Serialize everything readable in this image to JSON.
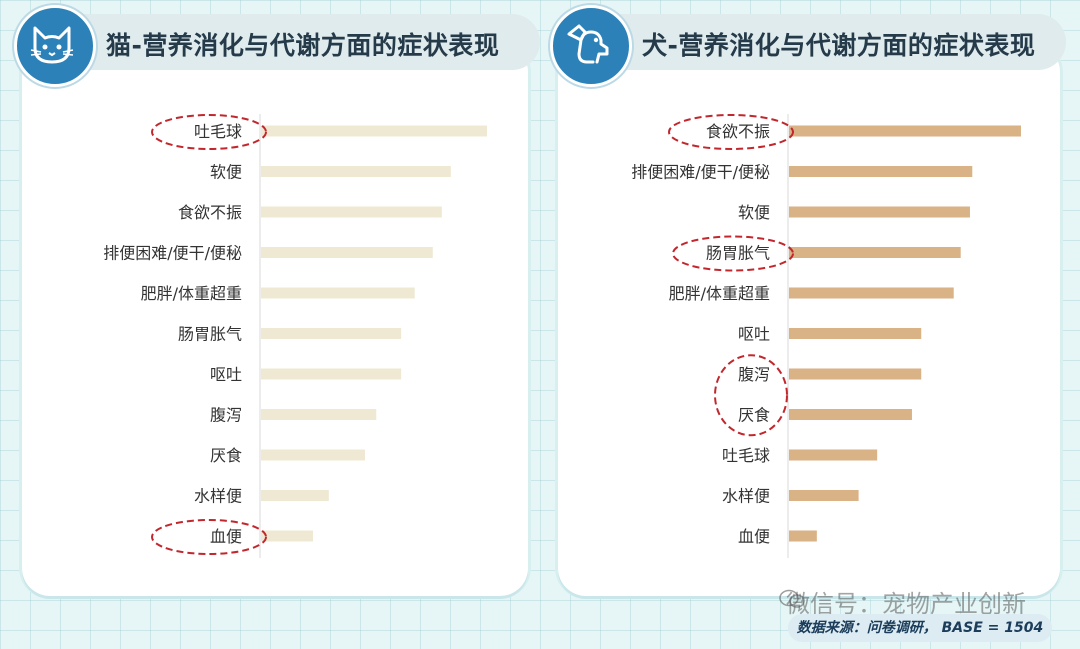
{
  "panels": [
    {
      "title": "猫-营养消化与代谢方面的症状表现",
      "icon": "cat-icon"
    },
    {
      "title": "犬-营养消化与代谢方面的症状表现",
      "icon": "dog-icon"
    }
  ],
  "chart_data": [
    {
      "type": "bar",
      "orientation": "horizontal",
      "title": "猫-营养消化与代谢方面的症状表现",
      "categories": [
        "吐毛球",
        "软便",
        "食欲不振",
        "排便困难/便干/便秘",
        "肥胖/体重超重",
        "肠胃胀气",
        "呕吐",
        "腹泻",
        "厌食",
        "水样便",
        "血便"
      ],
      "values": [
        100,
        84,
        80,
        76,
        68,
        62,
        62,
        51,
        46,
        30,
        23
      ],
      "xlim": [
        0,
        100
      ],
      "highlighted": [
        "吐毛球",
        "血便"
      ],
      "bar_color": "#efe8d2",
      "grid": false,
      "legend": "none"
    },
    {
      "type": "bar",
      "orientation": "horizontal",
      "title": "犬-营养消化与代谢方面的症状表现",
      "categories": [
        "食欲不振",
        "排便困难/便干/便秘",
        "软便",
        "肠胃胀气",
        "肥胖/体重超重",
        "呕吐",
        "腹泻",
        "厌食",
        "吐毛球",
        "水样便",
        "血便"
      ],
      "values": [
        100,
        79,
        78,
        74,
        71,
        57,
        57,
        53,
        38,
        30,
        12
      ],
      "xlim": [
        0,
        100
      ],
      "highlighted": [
        "食欲不振",
        "肠胃胀气",
        "腹泻",
        "厌食"
      ],
      "bar_color": "#d9b285",
      "grid": false,
      "legend": "none"
    }
  ],
  "source": "数据来源：问卷调研， BASE = 1504",
  "watermark": "微信号：宠物产业创新",
  "colors": {
    "accent": "#2c82b8",
    "highlight_ring": "#c1272d",
    "cat_bar": "#efe8d2",
    "dog_bar": "#d9b285"
  }
}
